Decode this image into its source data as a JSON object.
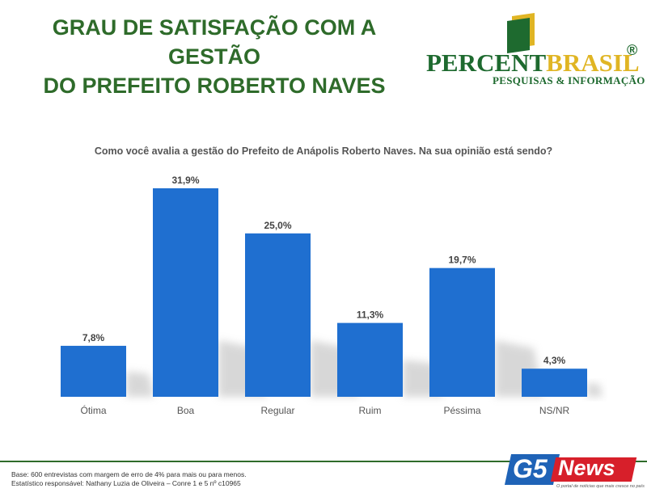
{
  "header": {
    "title_line1": "GRAU DE SATISFAÇÃO COM A GESTÃO",
    "title_line2": "DO PREFEITO ROBERTO NAVES"
  },
  "logo": {
    "name_part1": "PERCENT",
    "name_part2": "BRASIL",
    "registered": "®",
    "subtitle": "PESQUISAS & INFORMAÇÃO",
    "green": "#1e6a2f",
    "yellow": "#e0b524"
  },
  "question": "Como você avalia a gestão do Prefeito de Anápolis Roberto Naves. Na sua opinião está sendo?",
  "chart_data": {
    "type": "bar",
    "categories": [
      "Ótima",
      "Boa",
      "Regular",
      "Ruim",
      "Péssima",
      "NS/NR"
    ],
    "values": [
      7.8,
      31.9,
      25.0,
      11.3,
      19.7,
      4.3
    ],
    "value_labels": [
      "7,8%",
      "31,9%",
      "25,0%",
      "11,3%",
      "19,7%",
      "4,3%"
    ],
    "bar_color": "#1f6fd0",
    "ylim": [
      0,
      31.9
    ],
    "grid": false
  },
  "footer": {
    "line1": "Base: 600 entrevistas com margem de erro de 4% para mais ou para menos.",
    "line2": "Estatístico responsável: Nathany Luzia de Oliveira – Conre 1 e 5 nº c10965"
  },
  "watermark": {
    "brand_g5": "G5",
    "brand_news": "News",
    "tagline": "O portal de notícias que mais cresce no país"
  }
}
